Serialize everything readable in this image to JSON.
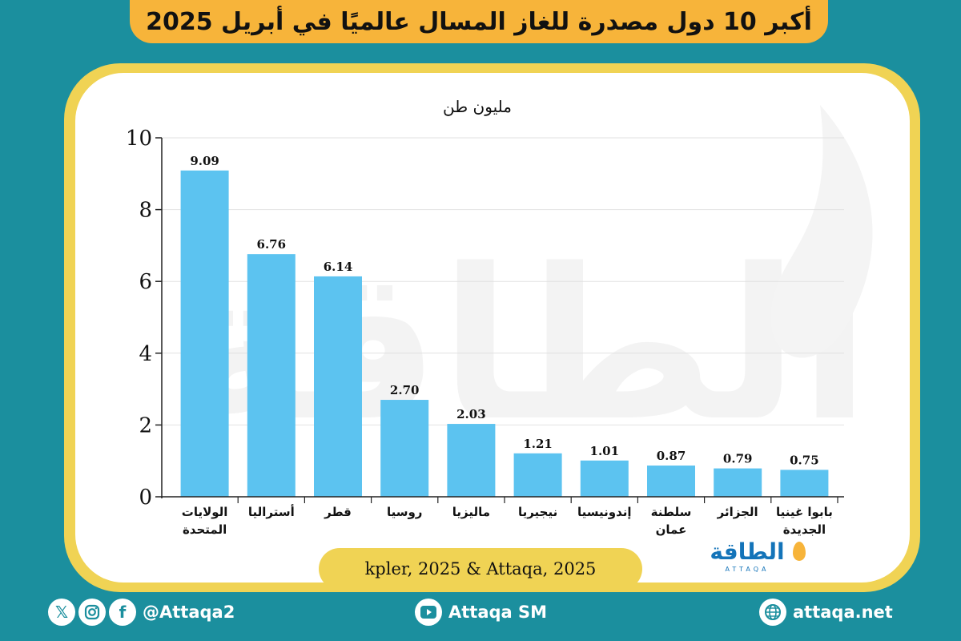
{
  "header": {
    "title": "أكبر 10 دول مصدرة للغاز المسال عالميًا في أبريل 2025"
  },
  "colors": {
    "background": "#1b8f9e",
    "banner": "#f7b43a",
    "card_border": "#f0d354",
    "bar": "#5cc3f0",
    "logo": "#1474b9"
  },
  "chart_data": {
    "type": "bar",
    "ylabel": "مليون طن",
    "ylim": [
      0,
      10
    ],
    "yticks": [
      0,
      2,
      4,
      6,
      8,
      10
    ],
    "grid": true,
    "categories": [
      [
        "الولايات",
        "المتحدة"
      ],
      [
        "أستراليا"
      ],
      [
        "قطر"
      ],
      [
        "روسيا"
      ],
      [
        "ماليزيا"
      ],
      [
        "نيجيريا"
      ],
      [
        "إندونيسيا"
      ],
      [
        "سلطنة",
        "عمان"
      ],
      [
        "الجزائر"
      ],
      [
        "بابوا غينيا",
        "الجديدة"
      ]
    ],
    "values": [
      9.09,
      6.76,
      6.14,
      2.7,
      2.03,
      1.21,
      1.01,
      0.87,
      0.79,
      0.75
    ],
    "value_labels": [
      "9.09",
      "6.76",
      "6.14",
      "2.70",
      "2.03",
      "1.21",
      "1.01",
      "0.87",
      "0.79",
      "0.75"
    ]
  },
  "source": {
    "text": "kpler, 2025 & Attaqa, 2025"
  },
  "logo": {
    "text": "الطاقة",
    "subtext": "ATTAQA"
  },
  "footer": {
    "social_handle": "@Attaqa2",
    "youtube": "Attaqa SM",
    "website": "attaqa.net",
    "icons": [
      "x-icon",
      "instagram-icon",
      "facebook-icon",
      "youtube-icon",
      "globe-icon"
    ]
  }
}
